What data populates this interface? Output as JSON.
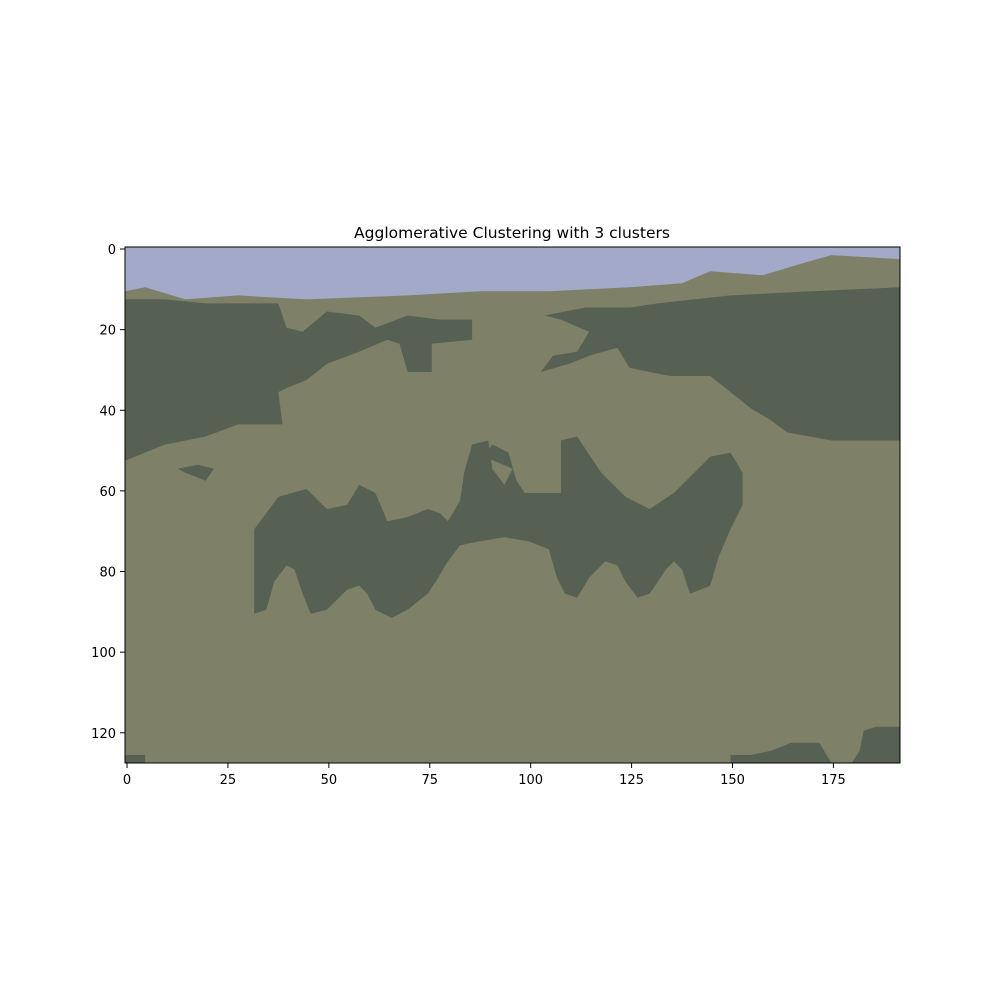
{
  "chart_data": {
    "type": "heatmap",
    "title": "Agglomerative Clustering with 3 clusters",
    "xlabel": "",
    "ylabel": "",
    "image_width": 192,
    "image_height": 128,
    "xlim": [
      -0.5,
      191.5
    ],
    "ylim": [
      127.5,
      -0.5
    ],
    "grid": false,
    "x_ticks": [
      0,
      25,
      50,
      75,
      100,
      125,
      150,
      175
    ],
    "y_ticks": [
      0,
      20,
      40,
      60,
      80,
      100,
      120
    ],
    "colors": {
      "sky": "#a3aac9",
      "mid": "#7f8068",
      "dark": "#576153"
    },
    "regions": [
      {
        "cluster": "sky",
        "polygon": [
          [
            0,
            0
          ],
          [
            192,
            0
          ],
          [
            192,
            3
          ],
          [
            175,
            2
          ],
          [
            168,
            4
          ],
          [
            158,
            7
          ],
          [
            145,
            6
          ],
          [
            138,
            9
          ],
          [
            125,
            10
          ],
          [
            105,
            11
          ],
          [
            88,
            11
          ],
          [
            70,
            12
          ],
          [
            45,
            13
          ],
          [
            28,
            12
          ],
          [
            15,
            13
          ],
          [
            5,
            10
          ],
          [
            0,
            11
          ]
        ]
      },
      {
        "cluster": "dark",
        "polygon": [
          [
            0,
            13
          ],
          [
            10,
            13
          ],
          [
            20,
            14
          ],
          [
            38,
            14
          ],
          [
            40,
            20
          ],
          [
            44,
            21
          ],
          [
            50,
            16
          ],
          [
            58,
            17
          ],
          [
            62,
            20
          ],
          [
            70,
            17
          ],
          [
            78,
            18
          ],
          [
            86,
            18
          ],
          [
            86,
            23
          ],
          [
            76,
            24
          ],
          [
            76,
            31
          ],
          [
            70,
            31
          ],
          [
            68,
            24
          ],
          [
            65,
            23
          ],
          [
            58,
            26
          ],
          [
            50,
            29
          ],
          [
            45,
            33
          ],
          [
            40,
            35
          ],
          [
            38,
            36
          ],
          [
            39,
            44
          ],
          [
            28,
            44
          ],
          [
            20,
            47
          ],
          [
            10,
            49
          ],
          [
            0,
            53
          ]
        ]
      },
      {
        "cluster": "dark",
        "polygon": [
          [
            104,
            17
          ],
          [
            114,
            15
          ],
          [
            125,
            15
          ],
          [
            132,
            14
          ],
          [
            150,
            12
          ],
          [
            170,
            11
          ],
          [
            192,
            10
          ],
          [
            192,
            48
          ],
          [
            185,
            48
          ],
          [
            175,
            48
          ],
          [
            164,
            46
          ],
          [
            160,
            43
          ],
          [
            155,
            40
          ],
          [
            150,
            36
          ],
          [
            145,
            32
          ],
          [
            135,
            32
          ],
          [
            125,
            30
          ],
          [
            122,
            25
          ],
          [
            115,
            27
          ],
          [
            110,
            29
          ],
          [
            103,
            31
          ],
          [
            106,
            27
          ],
          [
            112,
            26
          ],
          [
            115,
            21
          ],
          [
            108,
            18
          ]
        ]
      },
      {
        "cluster": "dark",
        "polygon": [
          [
            13,
            55
          ],
          [
            18,
            54
          ],
          [
            22,
            55
          ],
          [
            20,
            58
          ],
          [
            15,
            56
          ]
        ]
      },
      {
        "cluster": "dark",
        "polygon": [
          [
            32,
            70
          ],
          [
            38,
            62
          ],
          [
            45,
            60
          ],
          [
            50,
            65
          ],
          [
            55,
            64
          ],
          [
            58,
            59
          ],
          [
            62,
            61
          ],
          [
            65,
            68
          ],
          [
            70,
            67
          ],
          [
            75,
            65
          ],
          [
            78,
            66
          ],
          [
            80,
            68
          ],
          [
            83,
            63
          ],
          [
            84,
            56
          ],
          [
            86,
            49
          ],
          [
            90,
            48
          ],
          [
            91,
            55
          ],
          [
            94,
            59
          ],
          [
            96,
            55
          ],
          [
            89,
            52
          ],
          [
            91,
            49
          ],
          [
            95,
            51
          ],
          [
            97,
            58
          ],
          [
            99,
            61
          ],
          [
            108,
            61
          ],
          [
            108,
            48
          ],
          [
            112,
            47
          ],
          [
            118,
            56
          ],
          [
            124,
            62
          ],
          [
            130,
            65
          ],
          [
            136,
            61
          ],
          [
            145,
            52
          ],
          [
            150,
            51
          ],
          [
            153,
            56
          ],
          [
            153,
            64
          ],
          [
            150,
            70
          ],
          [
            147,
            77
          ],
          [
            145,
            84
          ],
          [
            140,
            86
          ],
          [
            138,
            80
          ],
          [
            136,
            78
          ],
          [
            134,
            80
          ],
          [
            130,
            86
          ],
          [
            127,
            87
          ],
          [
            124,
            83
          ],
          [
            122,
            79
          ],
          [
            119,
            78
          ],
          [
            115,
            82
          ],
          [
            112,
            87
          ],
          [
            109,
            86
          ],
          [
            107,
            82
          ],
          [
            105,
            75
          ],
          [
            100,
            73
          ],
          [
            94,
            72
          ],
          [
            88,
            73
          ],
          [
            83,
            74
          ],
          [
            80,
            78
          ],
          [
            77,
            83
          ],
          [
            75,
            86
          ],
          [
            70,
            90
          ],
          [
            66,
            92
          ],
          [
            62,
            90
          ],
          [
            60,
            86
          ],
          [
            58,
            84
          ],
          [
            55,
            85
          ],
          [
            50,
            90
          ],
          [
            46,
            91
          ],
          [
            44,
            86
          ],
          [
            42,
            80
          ],
          [
            40,
            79
          ],
          [
            37,
            83
          ],
          [
            35,
            90
          ],
          [
            32,
            91
          ]
        ]
      },
      {
        "cluster": "dark",
        "polygon": [
          [
            0,
            126
          ],
          [
            5,
            126
          ],
          [
            5,
            128
          ],
          [
            0,
            128
          ]
        ]
      },
      {
        "cluster": "dark",
        "polygon": [
          [
            150,
            126
          ],
          [
            155,
            126
          ],
          [
            160,
            125
          ],
          [
            165,
            123
          ],
          [
            172,
            123
          ],
          [
            175,
            128
          ],
          [
            150,
            128
          ]
        ]
      },
      {
        "cluster": "dark",
        "polygon": [
          [
            182,
            125
          ],
          [
            183,
            120
          ],
          [
            186,
            119
          ],
          [
            192,
            119
          ],
          [
            192,
            128
          ],
          [
            180,
            128
          ]
        ]
      }
    ]
  }
}
